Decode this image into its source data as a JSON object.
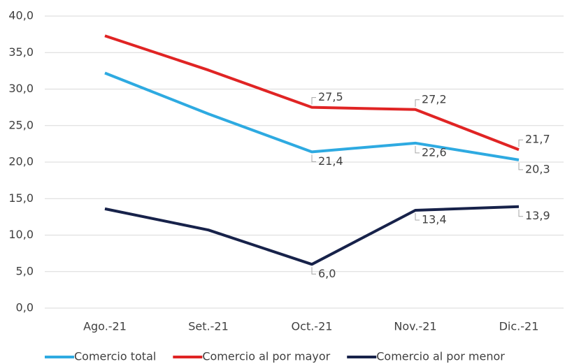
{
  "chart_data": {
    "type": "line",
    "categories": [
      "Ago.-21",
      "Set.-21",
      "Oct.-21",
      "Nov.-21",
      "Dic.-21"
    ],
    "series": [
      {
        "name": "Comercio total",
        "color": "#2eaae1",
        "values": [
          32.2,
          26.6,
          21.4,
          22.6,
          20.3
        ],
        "value_labels": [
          null,
          null,
          "21,4",
          "22,6",
          "20,3"
        ]
      },
      {
        "name": "Comercio al por mayor",
        "color": "#e02424",
        "values": [
          37.3,
          32.6,
          27.5,
          27.2,
          21.7
        ],
        "value_labels": [
          null,
          null,
          "27,5",
          "27,2",
          "21,7"
        ]
      },
      {
        "name": "Comercio al por menor",
        "color": "#17224a",
        "values": [
          13.6,
          10.7,
          6.0,
          13.4,
          13.9
        ],
        "value_labels": [
          null,
          null,
          "6,0",
          "13,4",
          "13,9"
        ]
      }
    ],
    "ylim": [
      0,
      40
    ],
    "yticks": [
      {
        "value": 0,
        "label": "0,0"
      },
      {
        "value": 5,
        "label": "5,0"
      },
      {
        "value": 10,
        "label": "10,0"
      },
      {
        "value": 15,
        "label": "15,0"
      },
      {
        "value": 20,
        "label": "20,0"
      },
      {
        "value": 25,
        "label": "25,0"
      },
      {
        "value": 30,
        "label": "30,0"
      },
      {
        "value": 35,
        "label": "35,0"
      },
      {
        "value": 40,
        "label": "40,0"
      }
    ],
    "grid": true
  }
}
